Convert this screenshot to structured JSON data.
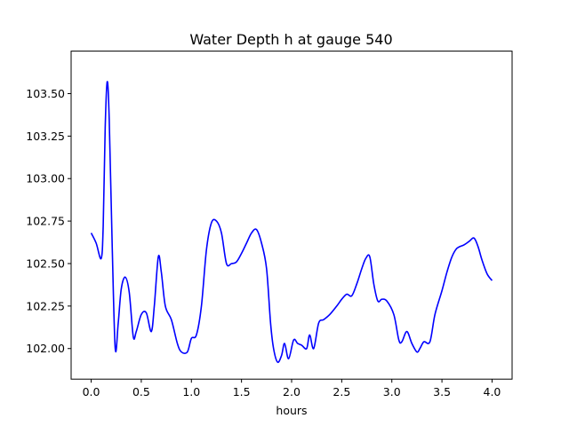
{
  "chart_data": {
    "type": "line",
    "title": "Water Depth h at gauge 540",
    "xlabel": "hours",
    "ylabel": "",
    "xlim": [
      -0.2,
      4.2
    ],
    "ylim": [
      101.82,
      103.75
    ],
    "x_ticks": [
      0.0,
      0.5,
      1.0,
      1.5,
      2.0,
      2.5,
      3.0,
      3.5,
      4.0
    ],
    "x_tick_labels": [
      "0.0",
      "0.5",
      "1.0",
      "1.5",
      "2.0",
      "2.5",
      "3.0",
      "3.5",
      "4.0"
    ],
    "y_ticks": [
      102.0,
      102.25,
      102.5,
      102.75,
      103.0,
      103.25,
      103.5
    ],
    "y_tick_labels": [
      "102.00",
      "102.25",
      "102.50",
      "102.75",
      "103.00",
      "103.25",
      "103.50"
    ],
    "grid": false,
    "legend": "none",
    "series": [
      {
        "color": "#0000ff",
        "points": [
          [
            0.0,
            102.68
          ],
          [
            0.05,
            102.62
          ],
          [
            0.1,
            102.53
          ],
          [
            0.12,
            102.72
          ],
          [
            0.14,
            103.3
          ],
          [
            0.16,
            103.57
          ],
          [
            0.18,
            103.35
          ],
          [
            0.21,
            102.6
          ],
          [
            0.24,
            102.0
          ],
          [
            0.27,
            102.15
          ],
          [
            0.3,
            102.35
          ],
          [
            0.34,
            102.42
          ],
          [
            0.38,
            102.33
          ],
          [
            0.42,
            102.07
          ],
          [
            0.45,
            102.1
          ],
          [
            0.5,
            102.2
          ],
          [
            0.55,
            102.21
          ],
          [
            0.6,
            102.1
          ],
          [
            0.63,
            102.25
          ],
          [
            0.67,
            102.54
          ],
          [
            0.7,
            102.45
          ],
          [
            0.74,
            102.25
          ],
          [
            0.8,
            102.17
          ],
          [
            0.86,
            102.03
          ],
          [
            0.9,
            101.98
          ],
          [
            0.96,
            101.98
          ],
          [
            1.0,
            102.06
          ],
          [
            1.05,
            102.08
          ],
          [
            1.1,
            102.25
          ],
          [
            1.15,
            102.58
          ],
          [
            1.2,
            102.74
          ],
          [
            1.25,
            102.75
          ],
          [
            1.3,
            102.68
          ],
          [
            1.35,
            102.5
          ],
          [
            1.4,
            102.5
          ],
          [
            1.45,
            102.51
          ],
          [
            1.5,
            102.56
          ],
          [
            1.55,
            102.62
          ],
          [
            1.6,
            102.68
          ],
          [
            1.65,
            102.7
          ],
          [
            1.7,
            102.62
          ],
          [
            1.75,
            102.47
          ],
          [
            1.79,
            102.15
          ],
          [
            1.82,
            102.0
          ],
          [
            1.86,
            101.92
          ],
          [
            1.9,
            101.96
          ],
          [
            1.93,
            102.03
          ],
          [
            1.97,
            101.94
          ],
          [
            2.02,
            102.05
          ],
          [
            2.06,
            102.03
          ],
          [
            2.1,
            102.02
          ],
          [
            2.15,
            102.0
          ],
          [
            2.18,
            102.08
          ],
          [
            2.22,
            102.0
          ],
          [
            2.27,
            102.15
          ],
          [
            2.32,
            102.17
          ],
          [
            2.38,
            102.2
          ],
          [
            2.45,
            102.25
          ],
          [
            2.5,
            102.29
          ],
          [
            2.55,
            102.32
          ],
          [
            2.6,
            102.31
          ],
          [
            2.65,
            102.38
          ],
          [
            2.7,
            102.47
          ],
          [
            2.74,
            102.53
          ],
          [
            2.78,
            102.54
          ],
          [
            2.82,
            102.38
          ],
          [
            2.86,
            102.28
          ],
          [
            2.9,
            102.29
          ],
          [
            2.95,
            102.28
          ],
          [
            3.02,
            102.2
          ],
          [
            3.07,
            102.05
          ],
          [
            3.1,
            102.04
          ],
          [
            3.15,
            102.1
          ],
          [
            3.2,
            102.03
          ],
          [
            3.25,
            101.98
          ],
          [
            3.28,
            102.0
          ],
          [
            3.32,
            102.04
          ],
          [
            3.38,
            102.04
          ],
          [
            3.43,
            102.2
          ],
          [
            3.5,
            102.34
          ],
          [
            3.55,
            102.45
          ],
          [
            3.6,
            102.54
          ],
          [
            3.65,
            102.59
          ],
          [
            3.72,
            102.61
          ],
          [
            3.77,
            102.63
          ],
          [
            3.82,
            102.65
          ],
          [
            3.86,
            102.6
          ],
          [
            3.9,
            102.52
          ],
          [
            3.95,
            102.44
          ],
          [
            4.0,
            102.4
          ]
        ]
      }
    ]
  }
}
